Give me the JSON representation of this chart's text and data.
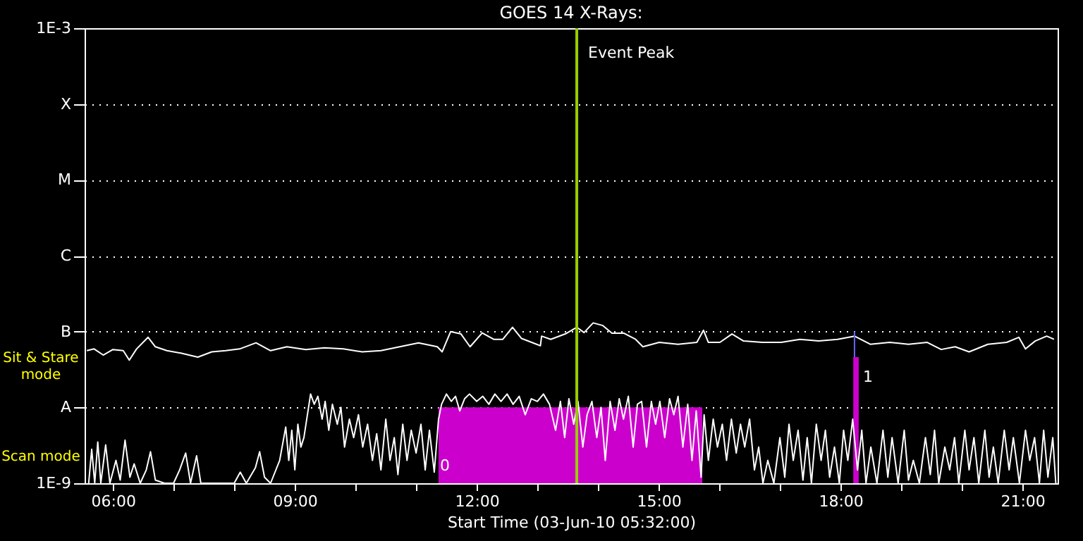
{
  "chart_data": {
    "type": "line",
    "title": "GOES 14 X-Rays:",
    "xlabel": "Start Time (03-Jun-10 05:32:00)",
    "log": "y",
    "grid": "y",
    "xlim": [
      5.533,
      21.58
    ],
    "xticks": [
      {
        "value": 6,
        "label": "06:00"
      },
      {
        "value": 7,
        "label": null
      },
      {
        "value": 8,
        "label": null
      },
      {
        "value": 9,
        "label": "09:00"
      },
      {
        "value": 10,
        "label": null
      },
      {
        "value": 11,
        "label": null
      },
      {
        "value": 12,
        "label": "12:00"
      },
      {
        "value": 13,
        "label": null
      },
      {
        "value": 14,
        "label": null
      },
      {
        "value": 15,
        "label": "15:00"
      },
      {
        "value": 16,
        "label": null
      },
      {
        "value": 17,
        "label": null
      },
      {
        "value": 18,
        "label": "18:00"
      },
      {
        "value": 19,
        "label": null
      },
      {
        "value": 20,
        "label": null
      },
      {
        "value": 21,
        "label": "21:00"
      }
    ],
    "ylim": [
      1e-09,
      0.001
    ],
    "yticks": [
      {
        "value": 1e-09,
        "label": "1E-9"
      },
      {
        "value": 1e-08,
        "label": "A"
      },
      {
        "value": 1e-07,
        "label": "B"
      },
      {
        "value": 1e-06,
        "label": "C"
      },
      {
        "value": 1e-05,
        "label": "M"
      },
      {
        "value": 0.0001,
        "label": "X"
      },
      {
        "value": 0.001,
        "label": "1E-3"
      }
    ],
    "series": [
      {
        "type": "area",
        "color": "#cc00cc",
        "x": [
          11.37,
          15.72
        ],
        "values": [
          1e-08,
          1e-08
        ]
      },
      {
        "type": "area",
        "color": "#cc00cc",
        "x": [
          18.21,
          18.3
        ],
        "values": [
          4.6e-08,
          4.6e-08
        ]
      },
      {
        "color": "#ffffff",
        "x": [
          5.57,
          5.69,
          5.84,
          6.0,
          6.17,
          6.27,
          6.39,
          6.58,
          6.7,
          6.89,
          7.12,
          7.4,
          7.63,
          7.86,
          8.09,
          8.36,
          8.6,
          8.87,
          9.18,
          9.49,
          9.8,
          10.11,
          10.42,
          10.73,
          11.04,
          11.35,
          11.43,
          11.57,
          11.74,
          11.89,
          12.09,
          12.28,
          12.43,
          12.59,
          12.74,
          13.05,
          13.07,
          13.22,
          13.46,
          13.65,
          13.77,
          13.92,
          14.08,
          14.23,
          14.43,
          14.62,
          14.74,
          15.01,
          15.32,
          15.63,
          15.74,
          15.82,
          16.01,
          16.21,
          16.4,
          16.71,
          17.02,
          17.33,
          17.64,
          17.95,
          18.23,
          18.49,
          18.81,
          19.12,
          19.43,
          19.66,
          19.89,
          20.12,
          20.43,
          20.74,
          20.94,
          21.05,
          21.21,
          21.4,
          21.52
        ],
        "values": [
          5.6e-08,
          5.9e-08,
          4.9e-08,
          5.8e-08,
          5.6e-08,
          4.2e-08,
          5.9e-08,
          8.4e-08,
          6.3e-08,
          5.6e-08,
          5.2e-08,
          4.6e-08,
          5.4e-08,
          5.6e-08,
          5.9e-08,
          7.1e-08,
          5.6e-08,
          6.3e-08,
          5.8e-08,
          6.1e-08,
          5.9e-08,
          5.4e-08,
          5.6e-08,
          6.3e-08,
          7.1e-08,
          6.3e-08,
          5.4e-08,
          1e-07,
          9.3e-08,
          6.3e-08,
          9.6e-08,
          7.9e-08,
          7.9e-08,
          1.14e-07,
          8.1e-08,
          6.5e-08,
          8.7e-08,
          7.9e-08,
          9.3e-08,
          1.14e-07,
          9.7e-08,
          1.3e-07,
          1.2e-07,
          9.5e-08,
          9.5e-08,
          7.9e-08,
          6.3e-08,
          7.2e-08,
          6.8e-08,
          7.2e-08,
          1.04e-07,
          7.2e-08,
          7.2e-08,
          9.3e-08,
          7.5e-08,
          7.2e-08,
          7.2e-08,
          7.9e-08,
          7.5e-08,
          7.9e-08,
          8.7e-08,
          6.8e-08,
          7.2e-08,
          6.8e-08,
          7.2e-08,
          5.8e-08,
          6.3e-08,
          5.4e-08,
          6.8e-08,
          7.2e-08,
          8.4e-08,
          5.9e-08,
          7.5e-08,
          8.7e-08,
          7.9e-08
        ]
      },
      {
        "color": "#ffffff",
        "x": [
          5.6,
          5.65,
          5.7,
          5.75,
          5.8,
          5.88,
          5.95,
          6.05,
          6.12,
          6.2,
          6.28,
          6.35,
          6.45,
          6.55,
          6.62,
          6.7,
          6.85,
          7.0,
          7.1,
          7.2,
          7.28,
          7.38,
          7.45,
          7.6,
          7.8,
          8.0,
          8.1,
          8.2,
          8.35,
          8.42,
          8.5,
          8.6,
          8.75,
          8.85,
          8.9,
          8.95,
          9.0,
          9.05,
          9.1,
          9.15,
          9.26,
          9.32,
          9.38,
          9.45,
          9.5,
          9.56,
          9.62,
          9.7,
          9.76,
          9.82,
          9.9,
          9.97,
          10.05,
          10.12,
          10.2,
          10.28,
          10.35,
          10.42,
          10.5,
          10.57,
          10.64,
          10.7,
          10.78,
          10.85,
          10.92,
          11.0,
          11.08,
          11.15,
          11.22,
          11.3,
          11.37,
          11.42,
          11.5,
          11.58,
          11.65,
          11.72,
          11.8,
          11.88,
          12.0,
          12.1,
          12.2,
          12.3,
          12.4,
          12.5,
          12.6,
          12.7,
          12.8,
          12.9,
          13.0,
          13.1,
          13.2,
          13.3,
          13.38,
          13.45,
          13.52,
          13.6,
          13.67,
          13.75,
          13.82,
          13.9,
          13.98,
          14.05,
          14.12,
          14.2,
          14.28,
          14.35,
          14.42,
          14.5,
          14.58,
          14.65,
          14.72,
          14.8,
          14.88,
          14.95,
          15.02,
          15.1,
          15.18,
          15.25,
          15.32,
          15.4,
          15.48,
          15.55,
          15.62,
          15.7,
          15.75,
          15.82,
          15.9,
          15.97,
          16.05,
          16.12,
          16.2,
          16.28,
          16.35,
          16.42,
          16.5,
          16.58,
          16.65,
          16.72,
          16.8,
          16.9,
          17.0,
          17.08,
          17.15,
          17.22,
          17.3,
          17.38,
          17.45,
          17.52,
          17.6,
          17.68,
          17.75,
          17.82,
          17.9,
          17.98,
          18.05,
          18.12,
          18.2,
          18.28,
          18.35,
          18.42,
          18.5,
          18.6,
          18.7,
          18.78,
          18.85,
          18.95,
          19.05,
          19.12,
          19.2,
          19.3,
          19.4,
          19.48,
          19.55,
          19.62,
          19.72,
          19.8,
          19.88,
          19.95,
          20.05,
          20.12,
          20.2,
          20.28,
          20.38,
          20.45,
          20.52,
          20.6,
          20.7,
          20.78,
          20.85,
          20.95,
          21.05,
          21.12,
          21.2,
          21.28,
          21.35,
          21.42,
          21.5,
          21.55
        ],
        "values": [
          1e-09,
          2.8e-09,
          1e-09,
          3.5e-09,
          1e-09,
          3.2e-09,
          1e-09,
          2e-09,
          1.1e-09,
          3.7e-09,
          1.2e-09,
          1.8e-09,
          1e-09,
          1.5e-09,
          2.6e-09,
          1.1e-09,
          1e-09,
          1e-09,
          1.5e-09,
          2.5e-09,
          1e-09,
          2.3e-09,
          1e-09,
          1e-09,
          1e-09,
          1e-09,
          1.4e-09,
          1e-09,
          1.6e-09,
          2.6e-09,
          1.2e-09,
          1e-09,
          2e-09,
          5.5e-09,
          2e-09,
          5e-09,
          1.5e-09,
          6e-09,
          3e-09,
          4e-09,
          1.5e-08,
          1.1e-08,
          1.4e-08,
          7e-09,
          1.2e-08,
          5e-09,
          1.1e-08,
          6e-09,
          1e-08,
          3e-09,
          7e-09,
          4e-09,
          8e-09,
          3e-09,
          6e-09,
          2e-09,
          4.5e-09,
          1.5e-09,
          7e-09,
          2e-09,
          4e-09,
          1.3e-09,
          6e-09,
          2e-09,
          5e-09,
          2.5e-09,
          6e-09,
          1.5e-09,
          5e-09,
          1.4e-09,
          7e-09,
          1.1e-08,
          1.5e-08,
          1.2e-08,
          1.4e-08,
          9e-09,
          1.3e-08,
          1.5e-08,
          1.2e-08,
          1.4e-08,
          1.1e-08,
          1.5e-08,
          1.2e-08,
          1.5e-08,
          1.1e-08,
          1.4e-08,
          8e-09,
          1.3e-08,
          1.2e-08,
          1.5e-08,
          1.1e-08,
          5e-09,
          1.2e-08,
          4e-09,
          1.3e-08,
          6e-09,
          1.2e-08,
          3e-09,
          8e-09,
          1.2e-08,
          4e-09,
          1e-08,
          2e-09,
          1.2e-08,
          5e-09,
          1.3e-08,
          7e-09,
          1.4e-08,
          3e-09,
          1.1e-08,
          1.2e-08,
          3e-09,
          1.2e-08,
          6e-09,
          1.2e-08,
          4e-09,
          1.3e-08,
          8e-09,
          1.4e-08,
          3e-09,
          1.1e-08,
          2e-09,
          9e-09,
          1.2e-09,
          8e-09,
          2e-09,
          7e-09,
          3e-09,
          6e-09,
          2e-09,
          7e-09,
          2.5e-09,
          6e-09,
          3e-09,
          7e-09,
          1.5e-09,
          3e-09,
          1e-09,
          2e-09,
          1e-09,
          4e-09,
          1.2e-09,
          6e-09,
          2e-09,
          5e-09,
          1.1e-09,
          4e-09,
          1e-09,
          6e-09,
          2e-09,
          5e-09,
          1.2e-09,
          3e-09,
          1e-09,
          5e-09,
          2e-09,
          7e-09,
          1.5e-09,
          5e-09,
          1e-09,
          3e-09,
          1e-09,
          5e-09,
          1.2e-09,
          4e-09,
          1e-09,
          5e-09,
          1.1e-09,
          2e-09,
          1e-09,
          4e-09,
          1.3e-09,
          5e-09,
          1e-09,
          3e-09,
          1.5e-09,
          4e-09,
          1e-09,
          5e-09,
          1.5e-09,
          4e-09,
          1e-09,
          5e-09,
          1.2e-09,
          3e-09,
          1e-09,
          5e-09,
          1.5e-09,
          4e-09,
          1e-09,
          5e-09,
          2e-09,
          4e-09,
          1e-09,
          5e-09,
          1.2e-09,
          4e-09,
          1e-09
        ]
      },
      {
        "color": "#6666ff",
        "x": [
          18.23,
          18.23
        ],
        "values": [
          1e-07,
          4.6e-08
        ]
      }
    ],
    "ref_lines": [
      {
        "axis": "x",
        "value": 13.65,
        "label": "Event Peak",
        "color": "#99cc00"
      }
    ],
    "annotations": [
      "Sit & Stare mode",
      "Scan mode",
      "0",
      "1"
    ]
  }
}
